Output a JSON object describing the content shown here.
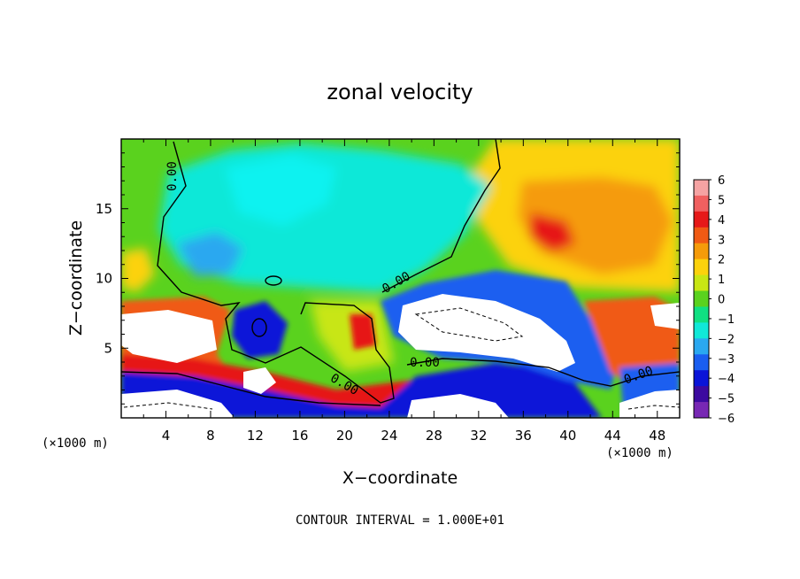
{
  "chart_data": {
    "type": "heatmap",
    "title": "zonal velocity",
    "xlabel": "X−coordinate",
    "ylabel": "Z−coordinate",
    "x_unit_left": "(×1000 m)",
    "x_unit_right": "(×1000 m)",
    "footer": "CONTOUR INTERVAL = 1.000E+01",
    "xlim": [
      0,
      50
    ],
    "ylim": [
      0,
      20
    ],
    "x_ticks": [
      "4",
      "8",
      "12",
      "16",
      "20",
      "24",
      "28",
      "32",
      "36",
      "40",
      "44",
      "48"
    ],
    "y_ticks": [
      "5",
      "10",
      "15"
    ],
    "colorbar_ticks": [
      "6",
      "5",
      "4",
      "3",
      "2",
      "1",
      "0",
      "−1",
      "−2",
      "−3",
      "−4",
      "−5",
      "−6"
    ],
    "colorbar_range": [
      -6,
      6
    ],
    "colorbar_colors": [
      "#f5a3a3",
      "#f06060",
      "#e61919",
      "#f05a14",
      "#f59b0a",
      "#fcd20c",
      "#c8e614",
      "#5ad21e",
      "#10e082",
      "#10e8d8",
      "#2aa8f0",
      "#1a5ef0",
      "#0a14d8",
      "#3c0aa0",
      "#7828b4"
    ],
    "contour_labels": [
      "0.00",
      "0.00",
      "0.00",
      "0.00",
      "0.00"
    ],
    "regions": [
      {
        "name": "green background",
        "value": 0.5
      },
      {
        "name": "upper-right warm",
        "value": 2.8
      },
      {
        "name": "cyan core",
        "value": -2.2
      },
      {
        "name": "blue patches",
        "value": -3.2
      },
      {
        "name": "right core",
        "value": 4.2
      },
      {
        "name": "left warm",
        "value": 2.4
      },
      {
        "name": "red bands",
        "value": 4.5
      },
      {
        "name": "blue jets",
        "value": -4.6
      },
      {
        "name": "masked terrain",
        "value": null
      }
    ]
  }
}
